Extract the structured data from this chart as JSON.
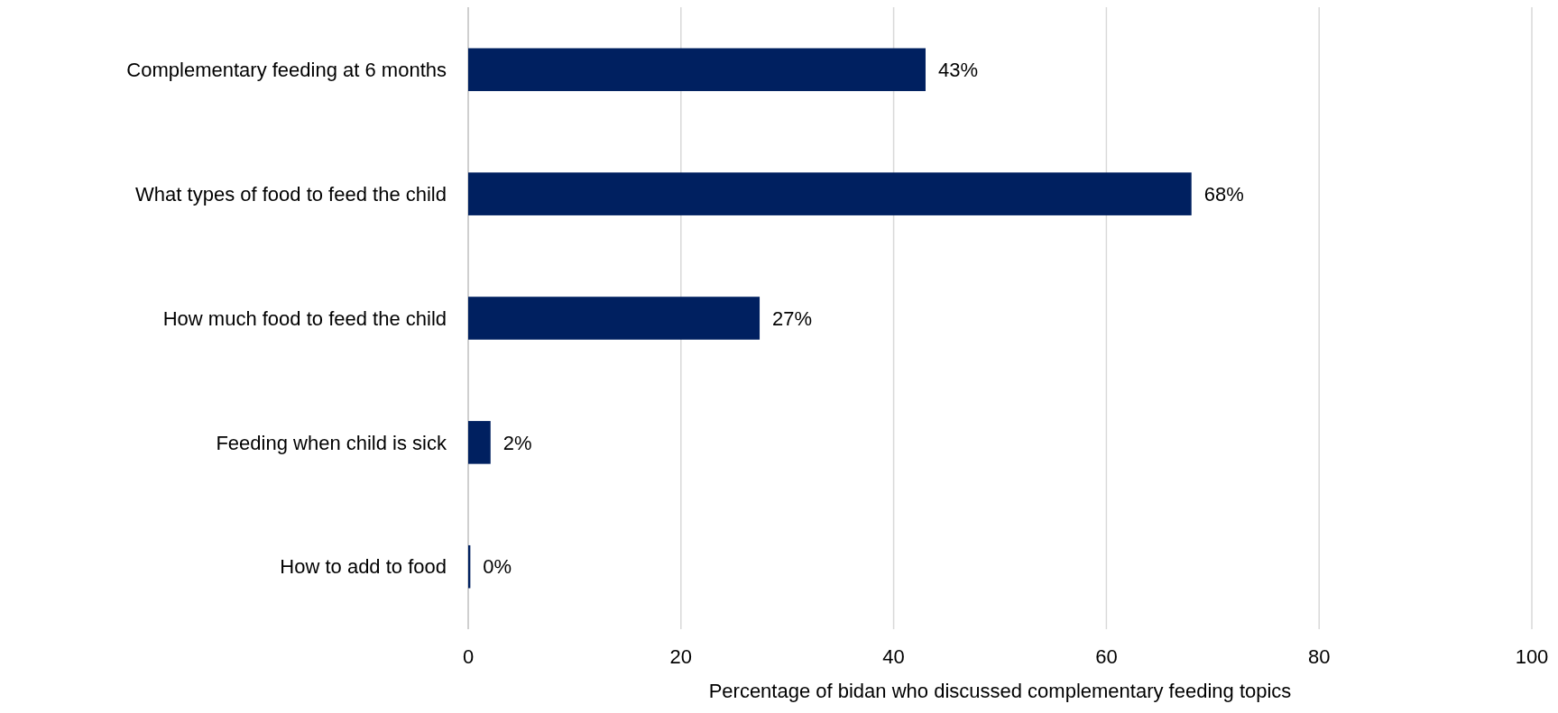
{
  "chart_data": {
    "type": "bar",
    "orientation": "horizontal",
    "xlabel": "Percentage of bidan who discussed complementary feeding topics",
    "categories": [
      "Complementary feeding at 6 months",
      "What types of food to feed the child",
      "How much food to feed the child",
      "Feeding when child is sick",
      "How to add to food"
    ],
    "values": [
      43,
      68,
      27.4,
      2.1,
      0.2
    ],
    "value_labels": [
      "43%",
      "68%",
      "27%",
      "2%",
      "0%"
    ],
    "color": "#002060",
    "xlim": [
      0,
      100
    ],
    "xticks": [
      0,
      20,
      40,
      60,
      80,
      100
    ],
    "grid": "x"
  }
}
